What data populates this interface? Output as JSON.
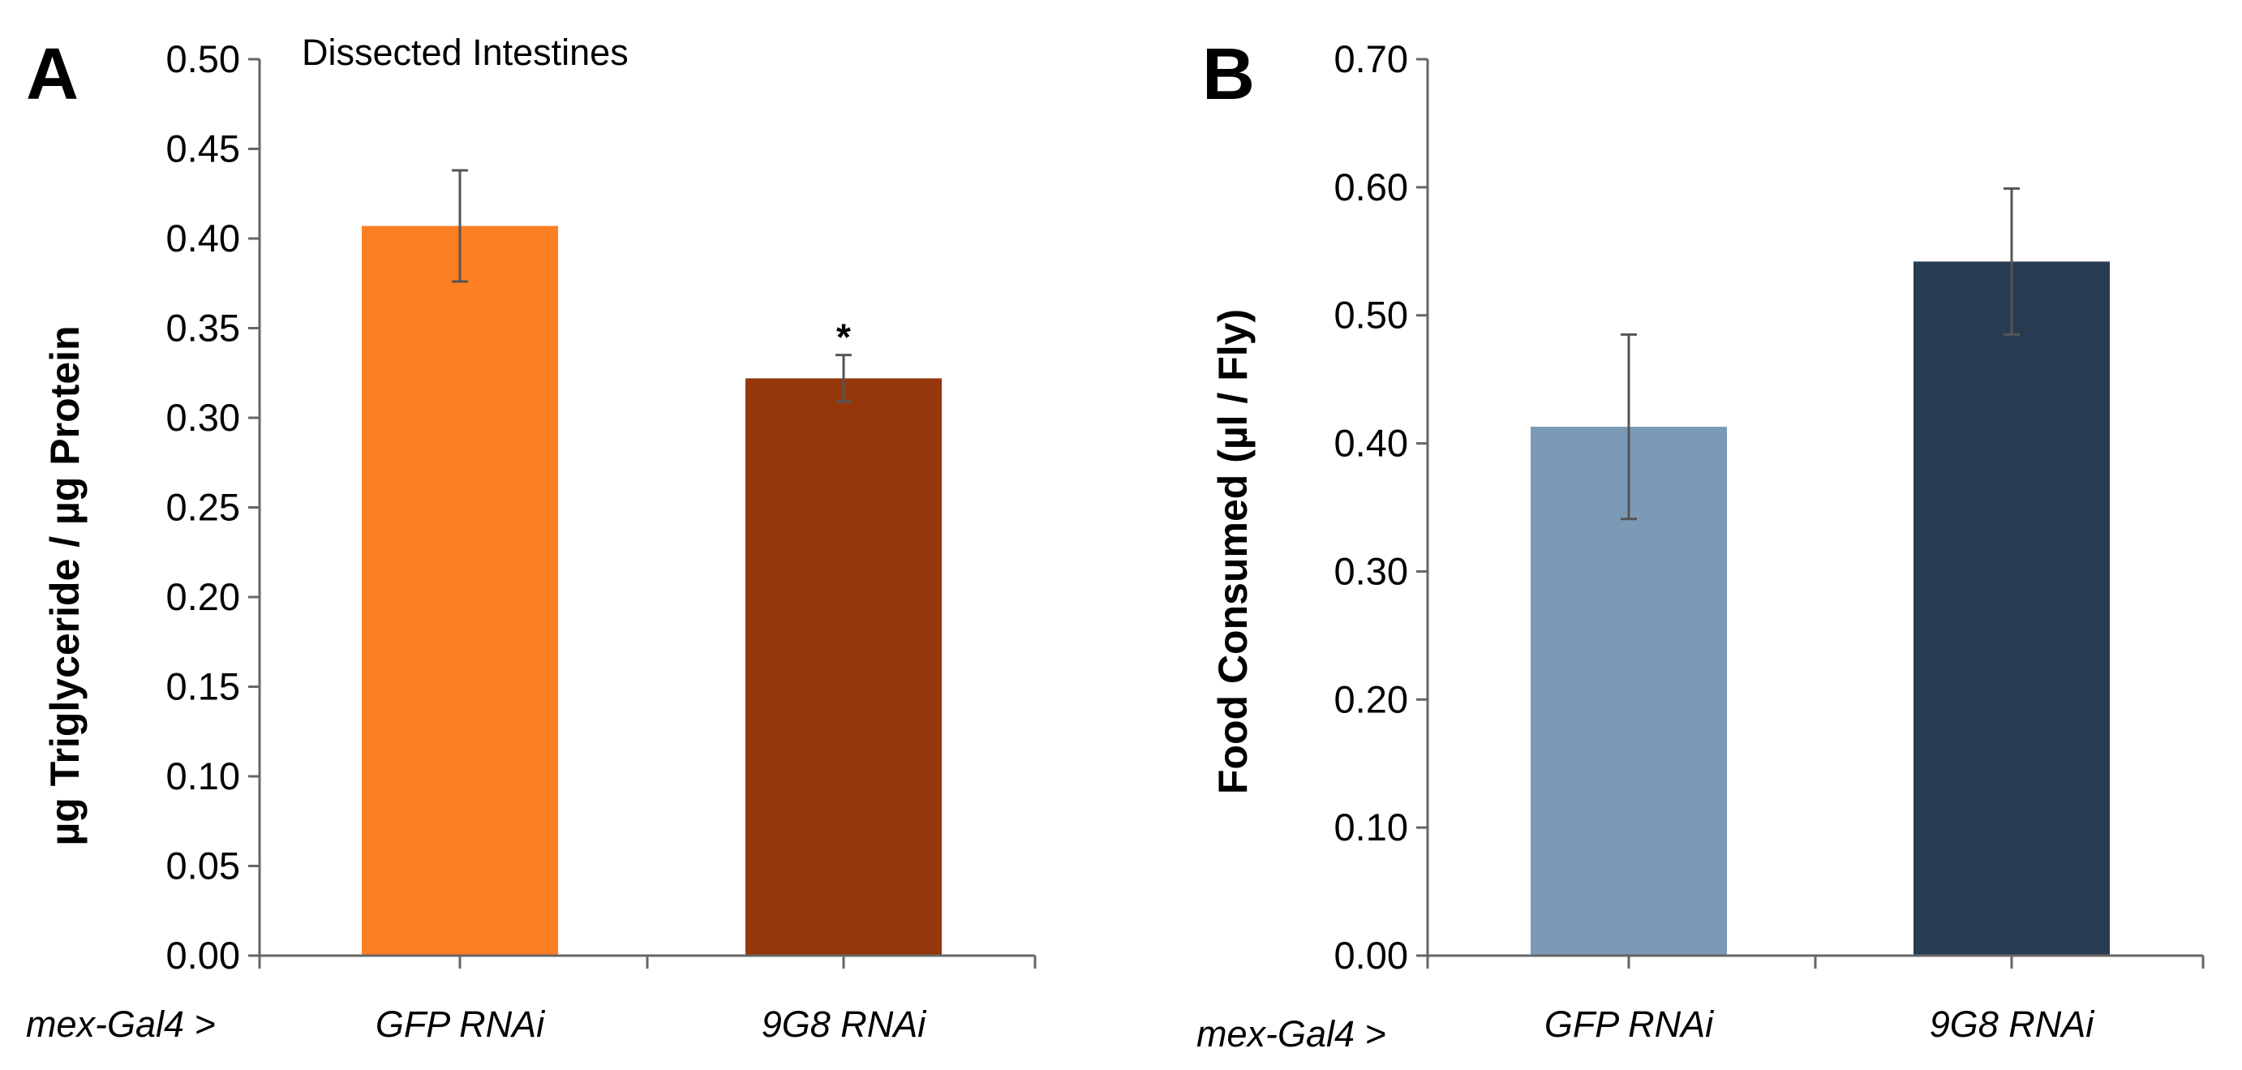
{
  "panel_labels": [
    "A",
    "B"
  ],
  "chart_data": [
    {
      "type": "bar",
      "panel": "A",
      "title": "Dissected Intestines",
      "xlabel": "mex-Gal4 >",
      "ylabel": "µg Triglyceride / µg Protein",
      "categories": [
        "GFP RNAi",
        "9G8 RNAi"
      ],
      "values": [
        0.407,
        0.322
      ],
      "errors": [
        0.031,
        0.013
      ],
      "colors": [
        "#fd7f23",
        "#95370a"
      ],
      "annotations": [
        "",
        "*"
      ],
      "ylim": [
        0,
        0.5
      ],
      "yticks": [
        "0.00",
        "0.05",
        "0.10",
        "0.15",
        "0.20",
        "0.25",
        "0.30",
        "0.35",
        "0.40",
        "0.45",
        "0.50"
      ]
    },
    {
      "type": "bar",
      "panel": "B",
      "title": "",
      "xlabel": "mex-Gal4 >",
      "ylabel": "Food Consumed (µl / Fly)",
      "categories": [
        "GFP RNAi",
        "9G8 RNAi"
      ],
      "values": [
        0.413,
        0.542
      ],
      "errors": [
        0.072,
        0.057
      ],
      "colors": [
        "#7b9ab6",
        "#283c51"
      ],
      "annotations": [
        "",
        ""
      ],
      "ylim": [
        0,
        0.7
      ],
      "yticks": [
        "0.00",
        "0.10",
        "0.20",
        "0.30",
        "0.40",
        "0.50",
        "0.60",
        "0.70"
      ]
    }
  ]
}
